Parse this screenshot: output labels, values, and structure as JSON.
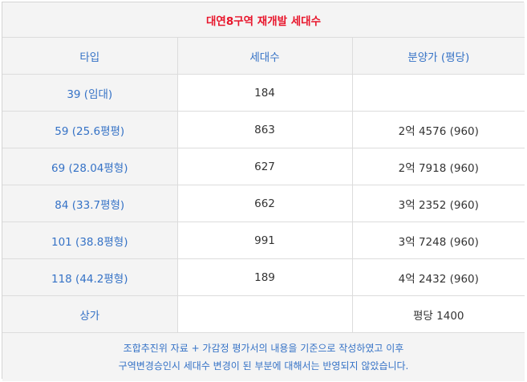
{
  "title": "대연8구역 재개발 세대수",
  "headers": {
    "type": "타입",
    "households": "세대수",
    "price": "분양가 (평당)"
  },
  "rows": [
    {
      "type": "39 (임대)",
      "households": "184",
      "price": ""
    },
    {
      "type": "59 (25.6평평)",
      "households": "863",
      "price": "2억 4576 (960)"
    },
    {
      "type": "69 (28.04평형)",
      "households": "627",
      "price": "2억 7918 (960)"
    },
    {
      "type": "84 (33.7평형)",
      "households": "662",
      "price": "3억 2352 (960)"
    },
    {
      "type": "101 (38.8평형)",
      "households": "991",
      "price": "3억 7248 (960)"
    },
    {
      "type": "118 (44.2평형)",
      "households": "189",
      "price": "4억 2432 (960)"
    },
    {
      "type": "상가",
      "households": "",
      "price": "평당 1400"
    }
  ],
  "note": {
    "line1": "조합추진위 자료 + 가감정 평가서의 내용을 기준으로 작성하였고 이후",
    "line2": "구역변경승인시 세대수 변경이 된 부분에 대해서는 반영되지 않았습니다."
  },
  "colors": {
    "title": "#e8162c",
    "accent": "#3572c6",
    "header_bg": "#f4f4f4",
    "value_text": "#333333"
  }
}
